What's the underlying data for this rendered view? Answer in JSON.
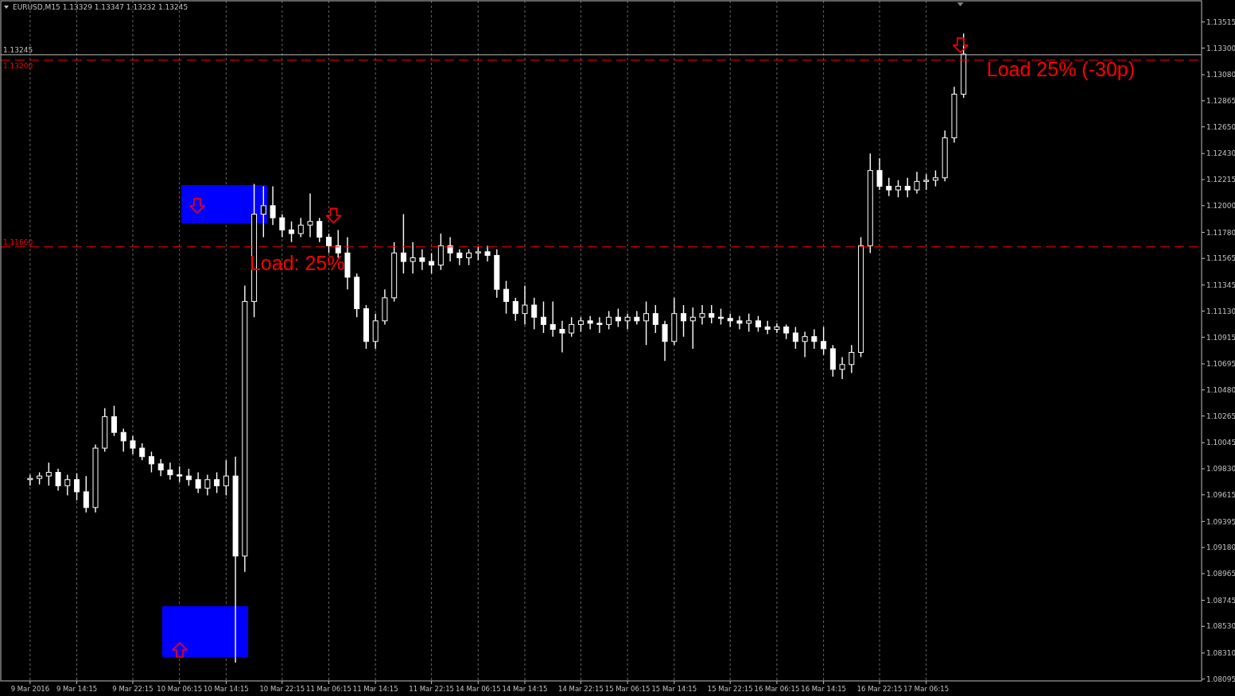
{
  "chart_data": {
    "type": "candlestick",
    "title": "EURUSD,M15  1.13329 1.13347 1.13232 1.13245",
    "categories": [
      "9 Mar 2016",
      null,
      null,
      null,
      null,
      "9 Mar 14:15",
      null,
      null,
      null,
      null,
      null,
      "9 Mar 22:15",
      null,
      null,
      null,
      null,
      "10 Mar 06:15",
      null,
      null,
      null,
      null,
      "10 Mar 14:15",
      null,
      null,
      null,
      null,
      null,
      "10 Mar 22:15",
      null,
      null,
      null,
      null,
      "11 Mar 06:15",
      null,
      null,
      null,
      null,
      "11 Mar 14:15",
      null,
      null,
      null,
      null,
      null,
      "11 Mar 22:15",
      null,
      null,
      null,
      null,
      "14 Mar 06:15",
      null,
      null,
      null,
      null,
      "14 Mar 14:15",
      null,
      null,
      null,
      null,
      null,
      "14 Mar 22:15",
      null,
      null,
      null,
      null,
      "15 Mar 06:15",
      null,
      null,
      null,
      null,
      "15 Mar 14:15",
      null,
      null,
      null,
      null,
      null,
      "15 Mar 22:15",
      null,
      null,
      null,
      null,
      "16 Mar 06:15",
      null,
      null,
      null,
      null,
      "16 Mar 14:15",
      null,
      null,
      null,
      null,
      null,
      "16 Mar 22:15",
      null,
      null,
      null,
      null,
      "17 Mar 06:15",
      null,
      null,
      null,
      null,
      null,
      null,
      null,
      null,
      null,
      null,
      null,
      null,
      null,
      null,
      null,
      null,
      null,
      null,
      null,
      null,
      null,
      null,
      null,
      null,
      null,
      null,
      null,
      null,
      null
    ],
    "ohlc": [
      [
        1.0974,
        1.0978,
        1.0969,
        1.0975
      ],
      [
        1.0975,
        1.098,
        1.097,
        1.0977
      ],
      [
        1.0977,
        1.0988,
        1.0969,
        1.098
      ],
      [
        1.098,
        1.0983,
        1.0965,
        1.0969
      ],
      [
        1.0969,
        1.0978,
        1.0961,
        1.0974
      ],
      [
        1.0974,
        1.0979,
        1.0957,
        1.0964
      ],
      [
        1.0964,
        1.0977,
        1.0947,
        1.0951
      ],
      [
        1.0951,
        1.1003,
        1.0947,
        1.1
      ],
      [
        1.1,
        1.1033,
        1.0997,
        1.1026
      ],
      [
        1.1026,
        1.1035,
        1.101,
        1.1013
      ],
      [
        1.1013,
        1.1016,
        1.0997,
        1.1006
      ],
      [
        1.1006,
        1.101,
        1.0995,
        1.1
      ],
      [
        1.1,
        1.1004,
        1.099,
        1.0993
      ],
      [
        1.0993,
        1.0997,
        1.098,
        1.0987
      ],
      [
        1.0987,
        1.0991,
        1.0977,
        1.0982
      ],
      [
        1.0982,
        1.0988,
        1.0974,
        1.0978
      ],
      [
        1.0978,
        1.0985,
        1.0972,
        1.0977
      ],
      [
        1.0977,
        1.0983,
        1.0969,
        1.0974
      ],
      [
        1.0974,
        1.098,
        1.0963,
        1.0967
      ],
      [
        1.0967,
        1.0978,
        1.0961,
        1.0974
      ],
      [
        1.0974,
        1.098,
        1.0963,
        1.0969
      ],
      [
        1.0969,
        1.099,
        1.0961,
        1.0977
      ],
      [
        1.0977,
        1.0993,
        1.0823,
        1.0911
      ],
      [
        1.0911,
        1.1134,
        1.0898,
        1.1121
      ],
      [
        1.1121,
        1.1218,
        1.1108,
        1.1193
      ],
      [
        1.1193,
        1.1216,
        1.1174,
        1.12
      ],
      [
        1.12,
        1.1216,
        1.1184,
        1.119
      ],
      [
        1.119,
        1.1193,
        1.1174,
        1.118
      ],
      [
        1.118,
        1.1187,
        1.117,
        1.1177
      ],
      [
        1.1177,
        1.119,
        1.1174,
        1.1184
      ],
      [
        1.1184,
        1.121,
        1.1174,
        1.1187
      ],
      [
        1.1187,
        1.119,
        1.117,
        1.1174
      ],
      [
        1.1174,
        1.1177,
        1.1161,
        1.1167
      ],
      [
        1.1167,
        1.118,
        1.1157,
        1.1161
      ],
      [
        1.1161,
        1.1174,
        1.1131,
        1.1141
      ],
      [
        1.1141,
        1.1144,
        1.1108,
        1.1115
      ],
      [
        1.1115,
        1.1118,
        1.1082,
        1.1088
      ],
      [
        1.1088,
        1.1111,
        1.1082,
        1.1105
      ],
      [
        1.1105,
        1.1131,
        1.1102,
        1.1124
      ],
      [
        1.1124,
        1.117,
        1.1121,
        1.1161
      ],
      [
        1.1161,
        1.1193,
        1.1144,
        1.1154
      ],
      [
        1.1154,
        1.117,
        1.1144,
        1.1157
      ],
      [
        1.1157,
        1.1164,
        1.1147,
        1.1154
      ],
      [
        1.1154,
        1.1161,
        1.1144,
        1.1151
      ],
      [
        1.1151,
        1.1177,
        1.1147,
        1.1167
      ],
      [
        1.1167,
        1.1174,
        1.1154,
        1.1161
      ],
      [
        1.1161,
        1.1164,
        1.1151,
        1.1157
      ],
      [
        1.1157,
        1.1164,
        1.1151,
        1.1161
      ],
      [
        1.1161,
        1.1166,
        1.1155,
        1.1162
      ],
      [
        1.1162,
        1.1167,
        1.1154,
        1.1159
      ],
      [
        1.1159,
        1.1164,
        1.1124,
        1.1131
      ],
      [
        1.1131,
        1.1138,
        1.1111,
        1.1121
      ],
      [
        1.1121,
        1.1124,
        1.1105,
        1.1111
      ],
      [
        1.1111,
        1.1134,
        1.1102,
        1.1118
      ],
      [
        1.1118,
        1.1124,
        1.1098,
        1.1108
      ],
      [
        1.1108,
        1.1121,
        1.1095,
        1.1102
      ],
      [
        1.1102,
        1.1121,
        1.1092,
        1.1098
      ],
      [
        1.1098,
        1.1105,
        1.1079,
        1.1095
      ],
      [
        1.1095,
        1.1108,
        1.1092,
        1.1102
      ],
      [
        1.1102,
        1.1108,
        1.1096,
        1.1105
      ],
      [
        1.1105,
        1.1109,
        1.1098,
        1.1103
      ],
      [
        1.1103,
        1.1108,
        1.1095,
        1.1102
      ],
      [
        1.1102,
        1.1113,
        1.1098,
        1.1108
      ],
      [
        1.1108,
        1.1115,
        1.11,
        1.1105
      ],
      [
        1.1105,
        1.1111,
        1.1098,
        1.1108
      ],
      [
        1.1108,
        1.1113,
        1.1102,
        1.1105
      ],
      [
        1.1105,
        1.1121,
        1.1085,
        1.1111
      ],
      [
        1.1111,
        1.1118,
        1.1095,
        1.1102
      ],
      [
        1.1102,
        1.1105,
        1.1072,
        1.1088
      ],
      [
        1.1088,
        1.1124,
        1.1085,
        1.1111
      ],
      [
        1.1111,
        1.1118,
        1.1092,
        1.1105
      ],
      [
        1.1105,
        1.1116,
        1.1082,
        1.1108
      ],
      [
        1.1108,
        1.1118,
        1.1102,
        1.1111
      ],
      [
        1.1111,
        1.1118,
        1.1103,
        1.1108
      ],
      [
        1.1108,
        1.1115,
        1.1102,
        1.1107
      ],
      [
        1.1107,
        1.1111,
        1.11,
        1.1105
      ],
      [
        1.1105,
        1.1109,
        1.1098,
        1.1103
      ],
      [
        1.1103,
        1.1111,
        1.1096,
        1.1105
      ],
      [
        1.1105,
        1.1109,
        1.1096,
        1.11
      ],
      [
        1.11,
        1.1105,
        1.1094,
        1.1098
      ],
      [
        1.1098,
        1.1103,
        1.1095,
        1.11
      ],
      [
        1.11,
        1.1102,
        1.109,
        1.1095
      ],
      [
        1.1095,
        1.11,
        1.1082,
        1.1088
      ],
      [
        1.1088,
        1.1096,
        1.1075,
        1.1092
      ],
      [
        1.1092,
        1.1098,
        1.1082,
        1.1088
      ],
      [
        1.1088,
        1.11,
        1.1077,
        1.1082
      ],
      [
        1.1082,
        1.1085,
        1.1059,
        1.1065
      ],
      [
        1.1065,
        1.1075,
        1.1057,
        1.1069
      ],
      [
        1.1069,
        1.1085,
        1.1062,
        1.1079
      ],
      [
        1.1079,
        1.1174,
        1.1075,
        1.1167
      ],
      [
        1.1167,
        1.1243,
        1.1161,
        1.1229
      ],
      [
        1.1229,
        1.1239,
        1.1213,
        1.1216
      ],
      [
        1.1216,
        1.1223,
        1.1208,
        1.1213
      ],
      [
        1.1213,
        1.1221,
        1.1207,
        1.1216
      ],
      [
        1.1216,
        1.1223,
        1.1207,
        1.1213
      ],
      [
        1.1213,
        1.1228,
        1.121,
        1.122
      ],
      [
        1.122,
        1.1226,
        1.1213,
        1.1221
      ],
      [
        1.1221,
        1.1229,
        1.1216,
        1.1223
      ],
      [
        1.1223,
        1.1262,
        1.122,
        1.1256
      ],
      [
        1.1256,
        1.1298,
        1.1252,
        1.1292
      ],
      [
        1.1292,
        1.1342,
        1.1289,
        1.1325
      ],
      null,
      null,
      null,
      null,
      null,
      null,
      null,
      null,
      null,
      null,
      null,
      null,
      null,
      null,
      null,
      null,
      null,
      null,
      null,
      null,
      null,
      null,
      null,
      null,
      null
    ],
    "ylim": [
      1.0808,
      1.1369
    ],
    "yticks": [
      {
        "value": 1.13515,
        "label": "1.13515"
      },
      {
        "value": 1.133,
        "label": "1.13300"
      },
      {
        "value": 1.1308,
        "label": "1.13080"
      },
      {
        "value": 1.12865,
        "label": "1.12865"
      },
      {
        "value": 1.1265,
        "label": "1.12650"
      },
      {
        "value": 1.1243,
        "label": "1.12430"
      },
      {
        "value": 1.12215,
        "label": "1.12215"
      },
      {
        "value": 1.12,
        "label": "1.12000"
      },
      {
        "value": 1.1178,
        "label": "1.11780"
      },
      {
        "value": 1.11565,
        "label": "1.11565"
      },
      {
        "value": 1.11345,
        "label": "1.11345"
      },
      {
        "value": 1.1113,
        "label": "1.11130"
      },
      {
        "value": 1.10915,
        "label": "1.10915"
      },
      {
        "value": 1.10695,
        "label": "1.10695"
      },
      {
        "value": 1.1048,
        "label": "1.10480"
      },
      {
        "value": 1.10265,
        "label": "1.10265"
      },
      {
        "value": 1.10045,
        "label": "1.10045"
      },
      {
        "value": 1.0983,
        "label": "1.09830"
      },
      {
        "value": 1.09615,
        "label": "1.09615"
      },
      {
        "value": 1.09395,
        "label": "1.09395"
      },
      {
        "value": 1.0918,
        "label": "1.09180"
      },
      {
        "value": 1.08965,
        "label": "1.08965"
      },
      {
        "value": 1.08745,
        "label": "1.08745"
      },
      {
        "value": 1.0853,
        "label": "1.08530"
      },
      {
        "value": 1.0831,
        "label": "1.08310"
      },
      {
        "value": 1.08095,
        "label": "1.08095"
      }
    ],
    "grid": "x",
    "ref_lines": [
      {
        "axis": "y",
        "value": 1.13245,
        "label": "1.13245",
        "color": "#c0c0c0",
        "line_style": "solid"
      },
      {
        "axis": "y",
        "value": 1.132,
        "label": "1.13200",
        "color": "#ff0000",
        "line_style": "dashed"
      },
      {
        "axis": "y",
        "value": 1.1166,
        "label": "1.11660",
        "color": "#ff0000",
        "line_style": "dashed"
      }
    ],
    "annotations": [
      "Load: 25%",
      "Load 25% (-30p)"
    ]
  }
}
